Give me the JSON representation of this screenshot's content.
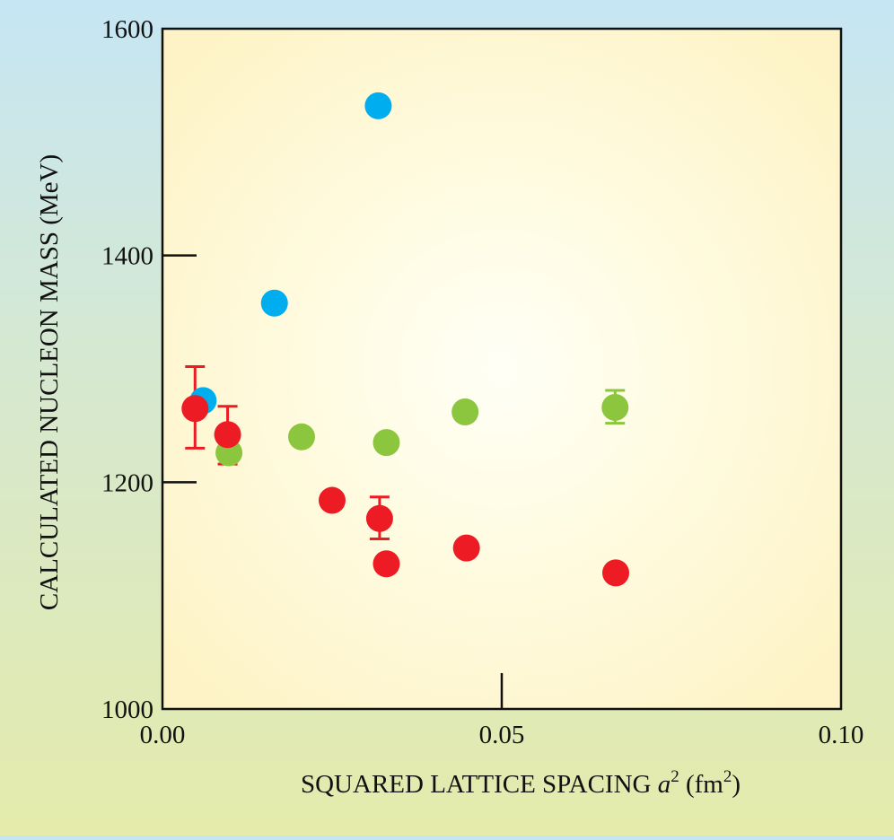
{
  "chart_data": {
    "type": "scatter",
    "title": "",
    "xlabel": {
      "text": "SQUARED LATTICE SPACING",
      "var": "a",
      "var_sup": "2",
      "unit_open": "(fm",
      "unit_sup": "2",
      "unit_close": ")"
    },
    "ylabel": "CALCULATED NUCLEON MASS (MeV)",
    "xlim": [
      0.0,
      0.1
    ],
    "ylim": [
      1000,
      1600
    ],
    "x_ticks": [
      {
        "value": 0.0,
        "label": "0.00"
      },
      {
        "value": 0.05,
        "label": "0.05"
      },
      {
        "value": 0.1,
        "label": "0.10"
      }
    ],
    "y_ticks": [
      {
        "value": 1000,
        "label": "1000"
      },
      {
        "value": 1200,
        "label": "1200"
      },
      {
        "value": 1400,
        "label": "1400"
      },
      {
        "value": 1600,
        "label": "1600"
      }
    ],
    "grid": false,
    "legend": "none",
    "series": [
      {
        "color": "#00aeef",
        "points": [
          {
            "x": 0.006,
            "y": 1272
          },
          {
            "x": 0.0165,
            "y": 1358
          },
          {
            "x": 0.0318,
            "y": 1532
          }
        ]
      },
      {
        "color": "#8cc63f",
        "points": [
          {
            "x": 0.0098,
            "y": 1226
          },
          {
            "x": 0.0205,
            "y": 1240
          },
          {
            "x": 0.033,
            "y": 1235
          },
          {
            "x": 0.0446,
            "y": 1262
          },
          {
            "x": 0.0667,
            "y": 1266,
            "err_low": 1252,
            "err_high": 1281
          }
        ]
      },
      {
        "color": "#ed1c24",
        "points": [
          {
            "x": 0.0048,
            "y": 1265,
            "err_low": 1230,
            "err_high": 1302
          },
          {
            "x": 0.0096,
            "y": 1242,
            "err_low": 1216,
            "err_high": 1267
          },
          {
            "x": 0.025,
            "y": 1184
          },
          {
            "x": 0.032,
            "y": 1168,
            "err_low": 1150,
            "err_high": 1187
          },
          {
            "x": 0.033,
            "y": 1128
          },
          {
            "x": 0.0448,
            "y": 1142
          },
          {
            "x": 0.0668,
            "y": 1120
          }
        ]
      }
    ]
  }
}
